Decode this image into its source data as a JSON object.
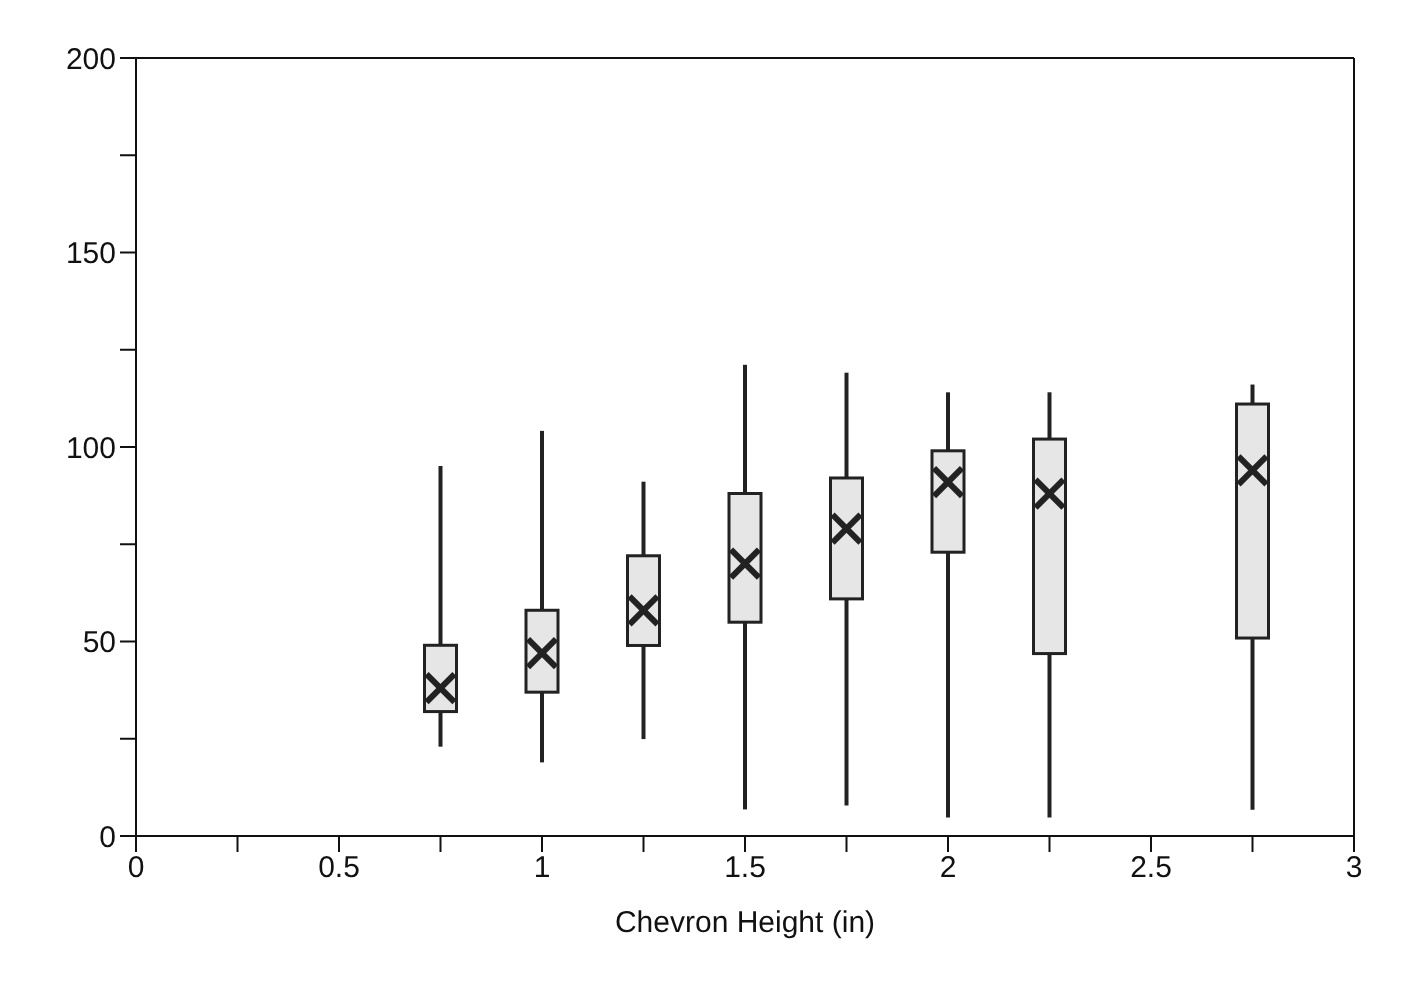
{
  "chart_data": {
    "type": "box",
    "xlabel": "Chevron Height (in)",
    "x": [
      0.75,
      1,
      1.25,
      1.5,
      1.75,
      2,
      2.25,
      2.75
    ],
    "series": [
      {
        "color": "#e6e6e6",
        "boxes": [
          {
            "low": 23,
            "q1": 32,
            "q3": 49,
            "high": 95,
            "mean": 38
          },
          {
            "low": 19,
            "q1": 37,
            "q3": 58,
            "high": 104,
            "mean": 47
          },
          {
            "low": 25,
            "q1": 49,
            "q3": 72,
            "high": 91,
            "mean": 58
          },
          {
            "low": 7,
            "q1": 55,
            "q3": 88,
            "high": 121,
            "mean": 70
          },
          {
            "low": 8,
            "q1": 61,
            "q3": 92,
            "high": 119,
            "mean": 79
          },
          {
            "low": 5,
            "q1": 73,
            "q3": 99,
            "high": 114,
            "mean": 91
          },
          {
            "low": 5,
            "q1": 47,
            "q3": 102,
            "high": 114,
            "mean": 88
          },
          {
            "low": 7,
            "q1": 51,
            "q3": 111,
            "high": 116,
            "mean": 94
          }
        ]
      }
    ],
    "marker": "cross",
    "xlim": [
      0,
      3
    ],
    "xticks": [
      0,
      {
        "value": 0.25,
        "label": null
      },
      0.5,
      {
        "value": 0.75,
        "label": null
      },
      1,
      {
        "value": 1.25,
        "label": null
      },
      1.5,
      {
        "value": 1.75,
        "label": null
      },
      2,
      {
        "value": 2.25,
        "label": null
      },
      2.5,
      {
        "value": 2.75,
        "label": null
      },
      3
    ],
    "ylim": [
      0,
      200
    ],
    "yticks": [
      0,
      {
        "value": 25,
        "label": null
      },
      50,
      {
        "value": 75,
        "label": null
      },
      100,
      {
        "value": 125,
        "label": null
      },
      150,
      {
        "value": 175,
        "label": null
      },
      200
    ],
    "grid": false
  }
}
